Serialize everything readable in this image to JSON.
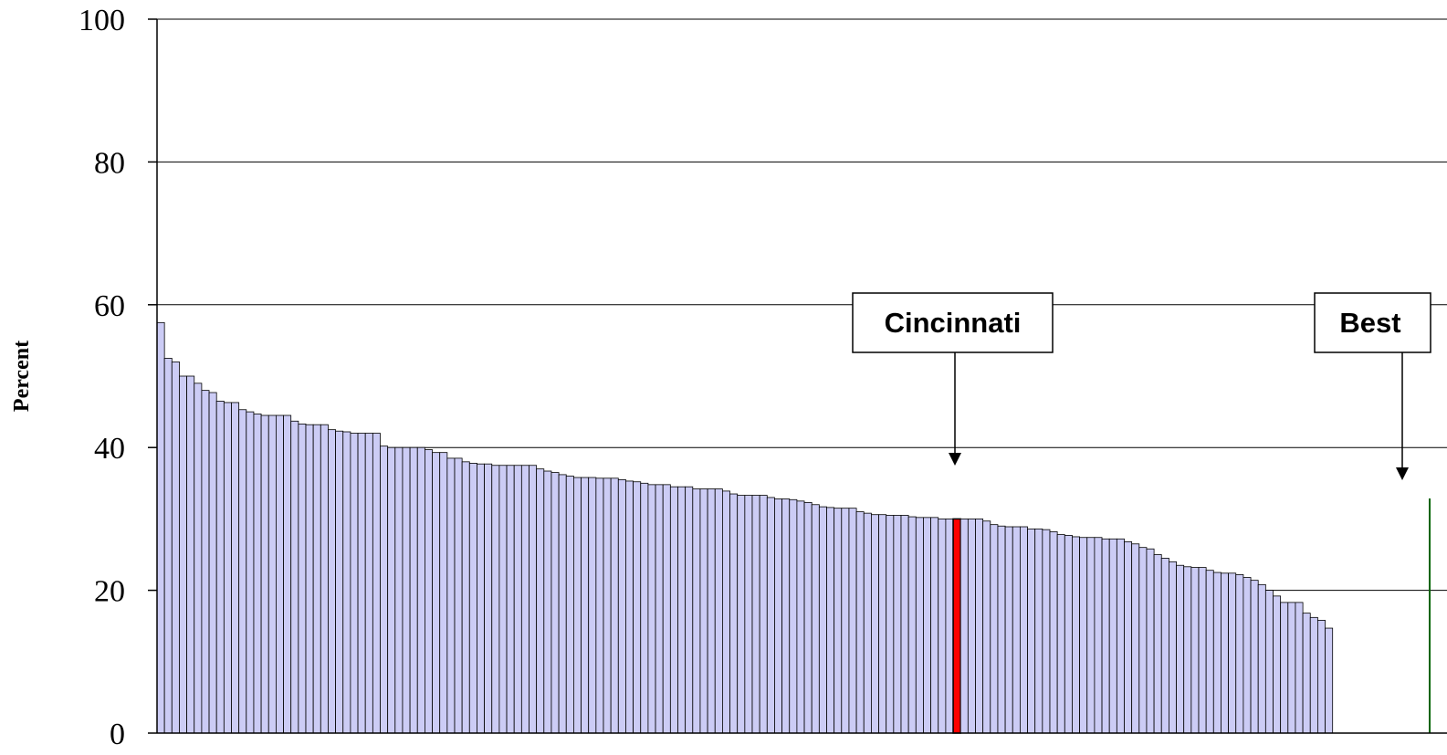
{
  "chart_data": {
    "type": "bar",
    "title": "",
    "xlabel": "",
    "ylabel": "Percent",
    "ylim": [
      0,
      100
    ],
    "yticks": [
      0,
      20,
      40,
      60,
      80,
      100
    ],
    "gridlines": [
      20,
      40,
      60,
      80,
      100
    ],
    "grid": true,
    "colors": {
      "default_bar": "#ccccf5",
      "bar_outline": "#000000",
      "highlight_bar": "#ff0000",
      "best_bar_edge": "#006400",
      "gridline": "#000000"
    },
    "values": [
      57.5,
      52.5,
      52,
      50,
      50,
      49,
      48,
      47.7,
      46.5,
      46.3,
      46.3,
      45.3,
      45,
      44.7,
      44.5,
      44.5,
      44.5,
      44.5,
      43.7,
      43.3,
      43.2,
      43.2,
      43.2,
      42.5,
      42.3,
      42.2,
      42,
      42,
      42,
      42,
      40.2,
      40,
      40,
      40,
      40,
      40,
      39.7,
      39.3,
      39.3,
      38.5,
      38.5,
      38,
      37.8,
      37.7,
      37.7,
      37.5,
      37.5,
      37.5,
      37.5,
      37.5,
      37.5,
      37,
      36.7,
      36.5,
      36.2,
      36,
      35.8,
      35.8,
      35.8,
      35.7,
      35.7,
      35.7,
      35.5,
      35.3,
      35.2,
      35,
      34.8,
      34.8,
      34.8,
      34.5,
      34.5,
      34.5,
      34.2,
      34.2,
      34.2,
      34.2,
      33.9,
      33.5,
      33.3,
      33.3,
      33.3,
      33.3,
      33,
      32.8,
      32.8,
      32.7,
      32.5,
      32.3,
      32,
      31.7,
      31.6,
      31.5,
      31.5,
      31.5,
      31,
      30.8,
      30.6,
      30.6,
      30.5,
      30.5,
      30.5,
      30.3,
      30.2,
      30.2,
      30.2,
      30,
      30,
      30,
      30,
      30,
      30,
      29.7,
      29.2,
      29,
      28.9,
      28.9,
      28.9,
      28.6,
      28.6,
      28.5,
      28.2,
      27.8,
      27.7,
      27.5,
      27.4,
      27.4,
      27.4,
      27.2,
      27.2,
      27.2,
      26.8,
      26.5,
      26,
      25.8,
      25,
      24.5,
      24,
      23.5,
      23.3,
      23.2,
      23.2,
      22.8,
      22.5,
      22.4,
      22.4,
      22.2,
      21.8,
      21.4,
      20.8,
      20,
      19.2,
      18.3,
      18.3,
      18.3,
      16.8,
      16.2,
      15.8,
      14.7
    ],
    "highlight_index": 107,
    "annotations": [
      {
        "label": "Cincinnati"
      },
      {
        "label": "Best"
      }
    ]
  }
}
